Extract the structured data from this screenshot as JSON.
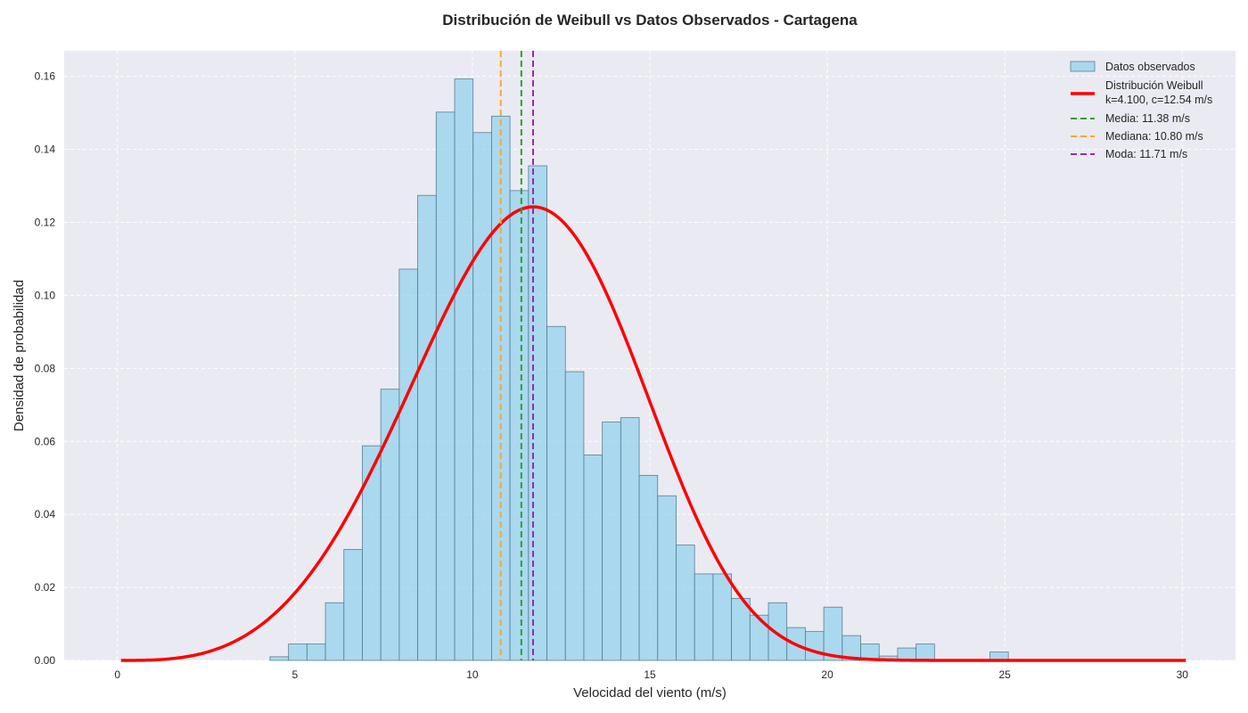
{
  "chart_data": {
    "type": "bar",
    "title": "Distribución de Weibull vs Datos Observados - Cartagena",
    "xlabel": "Velocidad del viento (m/s)",
    "ylabel": "Densidad de probabilidad",
    "xlim": [
      -1.5,
      31.5
    ],
    "ylim": [
      0,
      0.167
    ],
    "xticks": [
      0,
      5,
      10,
      15,
      20,
      25,
      30
    ],
    "yticks": [
      0.0,
      0.02,
      0.04,
      0.06,
      0.08,
      0.1,
      0.12,
      0.14,
      0.16
    ],
    "grid": true,
    "legend_position": "top-right",
    "histogram": {
      "name": "Datos observados",
      "bin_width": 0.52,
      "bins": [
        {
          "x0": 4.3,
          "value": 0.001
        },
        {
          "x0": 4.82,
          "value": 0.0045
        },
        {
          "x0": 5.34,
          "value": 0.0045
        },
        {
          "x0": 5.86,
          "value": 0.0158
        },
        {
          "x0": 6.38,
          "value": 0.0304
        },
        {
          "x0": 6.9,
          "value": 0.0588
        },
        {
          "x0": 7.42,
          "value": 0.0743
        },
        {
          "x0": 7.94,
          "value": 0.1072
        },
        {
          "x0": 8.46,
          "value": 0.1274
        },
        {
          "x0": 8.98,
          "value": 0.1502
        },
        {
          "x0": 9.5,
          "value": 0.1593
        },
        {
          "x0": 10.02,
          "value": 0.1446
        },
        {
          "x0": 10.54,
          "value": 0.1491
        },
        {
          "x0": 11.06,
          "value": 0.1287
        },
        {
          "x0": 11.58,
          "value": 0.1355
        },
        {
          "x0": 12.1,
          "value": 0.0915
        },
        {
          "x0": 12.62,
          "value": 0.0791
        },
        {
          "x0": 13.14,
          "value": 0.0563
        },
        {
          "x0": 13.66,
          "value": 0.0653
        },
        {
          "x0": 14.18,
          "value": 0.0665
        },
        {
          "x0": 14.7,
          "value": 0.0507
        },
        {
          "x0": 15.22,
          "value": 0.0451
        },
        {
          "x0": 15.74,
          "value": 0.0316
        },
        {
          "x0": 16.26,
          "value": 0.0237
        },
        {
          "x0": 16.78,
          "value": 0.0237
        },
        {
          "x0": 17.3,
          "value": 0.017
        },
        {
          "x0": 17.82,
          "value": 0.0124
        },
        {
          "x0": 18.34,
          "value": 0.0158
        },
        {
          "x0": 18.86,
          "value": 0.009
        },
        {
          "x0": 19.38,
          "value": 0.0079
        },
        {
          "x0": 19.9,
          "value": 0.0146
        },
        {
          "x0": 20.42,
          "value": 0.0068
        },
        {
          "x0": 20.94,
          "value": 0.0045
        },
        {
          "x0": 21.46,
          "value": 0.0012
        },
        {
          "x0": 21.98,
          "value": 0.0034
        },
        {
          "x0": 22.5,
          "value": 0.0045
        },
        {
          "x0": 24.58,
          "value": 0.0023
        }
      ]
    },
    "weibull": {
      "name": "Distribución Weibull\nk=4.100, c=12.54 m/s",
      "k": 4.1,
      "c": 12.54,
      "x_range": [
        0.1,
        30.1
      ],
      "color": "#ff0000"
    },
    "vlines": [
      {
        "name": "Media: 11.38 m/s",
        "x": 11.38,
        "color": "#2ca02c"
      },
      {
        "name": "Mediana: 10.80 m/s",
        "x": 10.8,
        "color": "#ffa726"
      },
      {
        "name": "Moda: 11.71 m/s",
        "x": 11.71,
        "color": "#9c27b0"
      }
    ],
    "colors": {
      "background": "#eaeaf2",
      "bar_fill": "#87ceeb",
      "bar_stroke": "#5a7f93",
      "grid": "#ffffff"
    }
  }
}
